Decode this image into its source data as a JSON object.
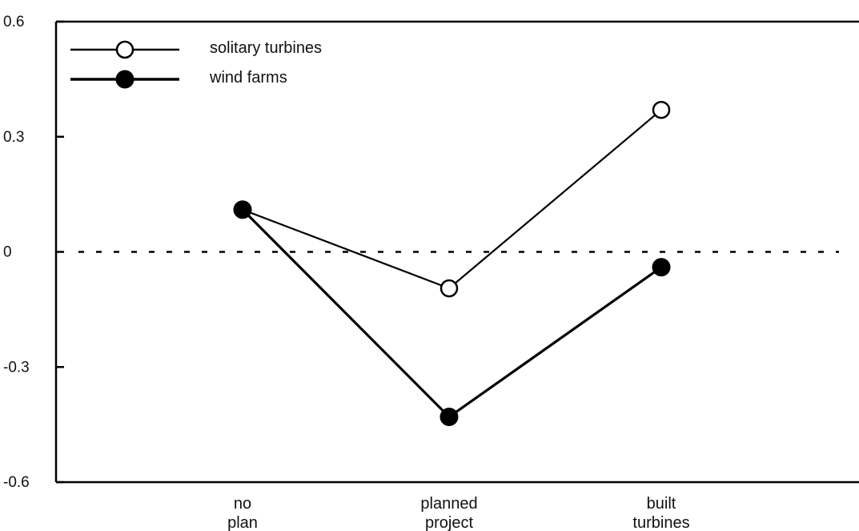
{
  "chart_data": {
    "type": "line",
    "categories": [
      [
        "no",
        "plan"
      ],
      [
        "planned",
        "project"
      ],
      [
        "built",
        "turbines"
      ]
    ],
    "ylim": [
      -0.6,
      0.6
    ],
    "yticks": [
      "0.6",
      "0.3",
      "0",
      "-0.3",
      "-0.6"
    ],
    "ytick_values": [
      0.6,
      0.3,
      0,
      -0.3,
      -0.6
    ],
    "reference_line": 0,
    "grid": false,
    "legend_position": "top-left",
    "series": [
      {
        "name": "solitary turbines",
        "marker": "open-circle",
        "values": [
          0.11,
          -0.095,
          0.37
        ]
      },
      {
        "name": "wind farms",
        "marker": "filled-circle",
        "values": [
          0.11,
          -0.43,
          -0.04
        ]
      }
    ]
  }
}
